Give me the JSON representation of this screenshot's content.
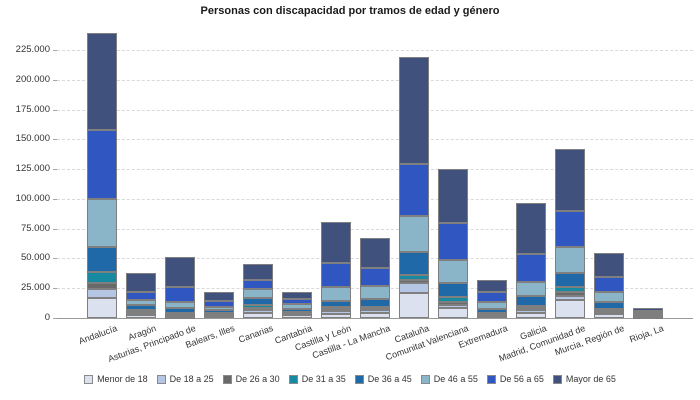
{
  "title": "Personas con discapacidad por tramos de edad y género",
  "colors": {
    "grid": "#d9d9d9",
    "axis": "#999999",
    "bar_border": "#7f7f7f",
    "text": "#333333"
  },
  "chart_data": {
    "type": "bar",
    "stacked": true,
    "title": "Personas con discapacidad por tramos de edad y género",
    "xlabel": "",
    "ylabel": "",
    "grid": "horizontal-dashed",
    "legend_position": "bottom",
    "ylim": [
      0,
      241800
    ],
    "y_ticks": [
      "0",
      "25.000",
      "50.000",
      "75.000",
      "100.000",
      "125.000",
      "150.000",
      "175.000",
      "200.000",
      "225.000"
    ],
    "categories": [
      "Andalucía",
      "Aragón",
      "Asturias, Principado de",
      "Balears, Illes",
      "Canarias",
      "Cantabria",
      "Castilla y León",
      "Castilla - La Mancha",
      "Cataluña",
      "Comunitat Valenciana",
      "Extremadura",
      "Galicia",
      "Madrid, Comunidad de",
      "Murcia, Región de",
      "Rioja, La"
    ],
    "series": [
      {
        "name": "Menor de 18",
        "color": "#dce1f0",
        "values": [
          16500,
          2500,
          1200,
          1900,
          4500,
          2300,
          3500,
          3800,
          20700,
          8100,
          1600,
          4000,
          15100,
          3100,
          600
        ]
      },
      {
        "name": "De 18 a 25",
        "color": "#b5c6e4",
        "values": [
          7500,
          1500,
          1200,
          1200,
          2300,
          1300,
          2400,
          2500,
          8400,
          2800,
          1100,
          2800,
          3600,
          2000,
          400
        ]
      },
      {
        "name": "De 26 a 30",
        "color": "#696969",
        "values": [
          5500,
          1000,
          900,
          600,
          1300,
          600,
          1300,
          1300,
          2800,
          2800,
          500,
          1500,
          3400,
          1000,
          300
        ]
      },
      {
        "name": "De 31 a 35",
        "color": "#1789a1",
        "values": [
          9000,
          1700,
          1300,
          800,
          2800,
          800,
          1800,
          1900,
          4200,
          3600,
          700,
          2100,
          4200,
          1400,
          400
        ]
      },
      {
        "name": "De 36 a 45",
        "color": "#2069a8",
        "values": [
          21500,
          4200,
          3500,
          2200,
          5600,
          2500,
          5600,
          6100,
          19000,
          11700,
          3600,
          8100,
          11700,
          5600,
          1100
        ]
      },
      {
        "name": "De 46 a 55",
        "color": "#8ab4c8",
        "values": [
          40000,
          4200,
          5600,
          2800,
          7600,
          4200,
          11700,
          11200,
          30800,
          20100,
          5600,
          12000,
          21200,
          9000,
          1200
        ]
      },
      {
        "name": "De 56 a 65",
        "color": "#3056c2",
        "values": [
          57500,
          6700,
          12600,
          4800,
          7800,
          3900,
          19600,
          14900,
          43400,
          30800,
          9000,
          23200,
          30500,
          12600,
          2000
        ]
      },
      {
        "name": "Mayor de 65",
        "color": "#41517e",
        "values": [
          81500,
          15700,
          25200,
          7300,
          13200,
          6400,
          34400,
          25200,
          89500,
          45600,
          9800,
          43000,
          51800,
          19600,
          2600
        ]
      }
    ]
  }
}
